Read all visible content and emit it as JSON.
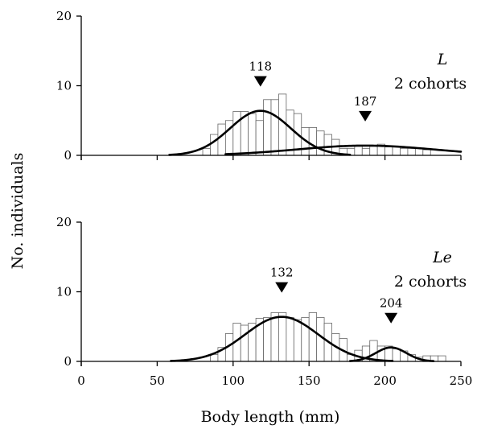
{
  "chart_data": [
    {
      "type": "bar",
      "panel_label": "L",
      "cohort_text": "2 cohorts",
      "ylabel": "No. individuals",
      "ylim": [
        0,
        20
      ],
      "yticks": [
        0,
        10,
        20
      ],
      "xlim": [
        0,
        250
      ],
      "bin_width": 5,
      "histogram": [
        {
          "x": 82.5,
          "y": 1
        },
        {
          "x": 87.5,
          "y": 3
        },
        {
          "x": 92.5,
          "y": 4.5
        },
        {
          "x": 97.5,
          "y": 5
        },
        {
          "x": 102.5,
          "y": 6.3
        },
        {
          "x": 107.5,
          "y": 6.3
        },
        {
          "x": 112.5,
          "y": 6
        },
        {
          "x": 117.5,
          "y": 5
        },
        {
          "x": 122.5,
          "y": 8
        },
        {
          "x": 127.5,
          "y": 8
        },
        {
          "x": 132.5,
          "y": 8.8
        },
        {
          "x": 137.5,
          "y": 6.5
        },
        {
          "x": 142.5,
          "y": 6
        },
        {
          "x": 147.5,
          "y": 4
        },
        {
          "x": 152.5,
          "y": 4
        },
        {
          "x": 157.5,
          "y": 3.5
        },
        {
          "x": 162.5,
          "y": 3
        },
        {
          "x": 167.5,
          "y": 2.3
        },
        {
          "x": 172.5,
          "y": 1
        },
        {
          "x": 177.5,
          "y": 1
        },
        {
          "x": 182.5,
          "y": 1.3
        },
        {
          "x": 187.5,
          "y": 1
        },
        {
          "x": 192.5,
          "y": 1.3
        },
        {
          "x": 197.5,
          "y": 1.6
        },
        {
          "x": 202.5,
          "y": 1.2
        },
        {
          "x": 207.5,
          "y": 1.3
        },
        {
          "x": 212.5,
          "y": 1
        },
        {
          "x": 217.5,
          "y": 1
        },
        {
          "x": 222.5,
          "y": 1
        },
        {
          "x": 227.5,
          "y": 0.8
        }
      ],
      "curves": [
        {
          "mean": 118,
          "sd": 20,
          "peak": 6.4,
          "x_range": [
            58,
            177
          ]
        },
        {
          "mean": 187,
          "sd": 45,
          "peak": 1.4,
          "x_range": [
            95,
            250
          ]
        }
      ],
      "peaks": [
        {
          "label": "118",
          "x": 118,
          "y": 6.4
        },
        {
          "label": "187",
          "x": 187,
          "y": 1.4
        }
      ]
    },
    {
      "type": "bar",
      "panel_label": "Le",
      "cohort_text": "2 cohorts",
      "xlabel": "Body length (mm)",
      "ylim": [
        0,
        20
      ],
      "yticks": [
        0,
        10,
        20
      ],
      "xlim": [
        0,
        250
      ],
      "xticks": [
        0,
        50,
        100,
        150,
        200,
        250
      ],
      "bin_width": 5,
      "histogram": [
        {
          "x": 87.5,
          "y": 1
        },
        {
          "x": 92.5,
          "y": 2
        },
        {
          "x": 97.5,
          "y": 4
        },
        {
          "x": 102.5,
          "y": 5.5
        },
        {
          "x": 107.5,
          "y": 5.2
        },
        {
          "x": 112.5,
          "y": 5.5
        },
        {
          "x": 117.5,
          "y": 6.2
        },
        {
          "x": 122.5,
          "y": 6.3
        },
        {
          "x": 127.5,
          "y": 7
        },
        {
          "x": 132.5,
          "y": 7
        },
        {
          "x": 137.5,
          "y": 6.3
        },
        {
          "x": 142.5,
          "y": 6
        },
        {
          "x": 147.5,
          "y": 6.3
        },
        {
          "x": 152.5,
          "y": 7
        },
        {
          "x": 157.5,
          "y": 6.3
        },
        {
          "x": 162.5,
          "y": 5.5
        },
        {
          "x": 167.5,
          "y": 4
        },
        {
          "x": 172.5,
          "y": 3.3
        },
        {
          "x": 177.5,
          "y": 1
        },
        {
          "x": 182.5,
          "y": 1.6
        },
        {
          "x": 187.5,
          "y": 2.2
        },
        {
          "x": 192.5,
          "y": 3
        },
        {
          "x": 197.5,
          "y": 2.2
        },
        {
          "x": 202.5,
          "y": 2.2
        },
        {
          "x": 207.5,
          "y": 1.8
        },
        {
          "x": 212.5,
          "y": 1.5
        },
        {
          "x": 217.5,
          "y": 1
        },
        {
          "x": 222.5,
          "y": 0.6
        },
        {
          "x": 227.5,
          "y": 0.8
        },
        {
          "x": 232.5,
          "y": 0.8
        },
        {
          "x": 237.5,
          "y": 0.8
        }
      ],
      "curves": [
        {
          "mean": 132,
          "sd": 24,
          "peak": 6.4,
          "x_range": [
            59,
            205
          ]
        },
        {
          "mean": 204,
          "sd": 10,
          "peak": 2.0,
          "x_range": [
            177,
            232
          ]
        }
      ],
      "peaks": [
        {
          "label": "132",
          "x": 132,
          "y": 6.4
        },
        {
          "label": "204",
          "x": 204,
          "y": 2.0
        }
      ]
    }
  ]
}
